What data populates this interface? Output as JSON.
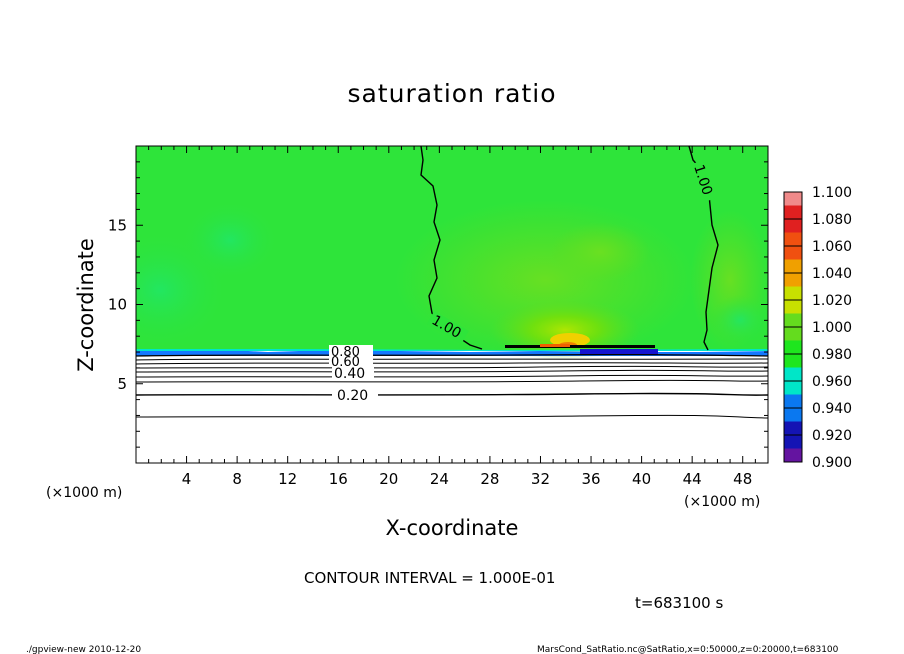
{
  "chart_data": {
    "type": "heatmap",
    "title": "saturation ratio",
    "xlabel": "X-coordinate",
    "ylabel": "Z-coordinate",
    "x_unit": "(×1000 m)",
    "y_unit": "(×1000 m)",
    "xlim": [
      0,
      50
    ],
    "ylim": [
      0,
      20
    ],
    "x_ticks": [
      4,
      8,
      12,
      16,
      20,
      24,
      28,
      32,
      36,
      40,
      44,
      48
    ],
    "y_ticks": [
      5,
      10,
      15
    ],
    "colorbar": {
      "levels": [
        "1.100",
        "1.080",
        "1.060",
        "1.040",
        "1.020",
        "1.000",
        "0.980",
        "0.960",
        "0.940",
        "0.920",
        "0.900"
      ],
      "colors": [
        "#f08a8a",
        "#e02020",
        "#f05010",
        "#f0a000",
        "#c8e000",
        "#64dc1e",
        "#1ee61e",
        "#00e6c8",
        "#0a78f0",
        "#1414b4",
        "#6414a0"
      ]
    },
    "contour_labels": [
      {
        "text": "1.00",
        "x": 24.5,
        "z": 8.2
      },
      {
        "text": "1.00",
        "x": 44.2,
        "z": 17.8
      },
      {
        "text": "0.80",
        "x": 17.2,
        "z": 6.9
      },
      {
        "text": "0.60",
        "x": 17.2,
        "z": 6.4
      },
      {
        "text": "0.40",
        "x": 17.2,
        "z": 5.6
      },
      {
        "text": "0.20",
        "x": 17.2,
        "z": 4.3
      }
    ],
    "contour_interval": "CONTOUR INTERVAL = 1.000E-01",
    "time": "t=683100 s"
  },
  "footer": {
    "left": "./gpview-new   2010-12-20",
    "right": "MarsCond_SatRatio.nc@SatRatio,x=0:50000,z=0:20000,t=683100"
  }
}
